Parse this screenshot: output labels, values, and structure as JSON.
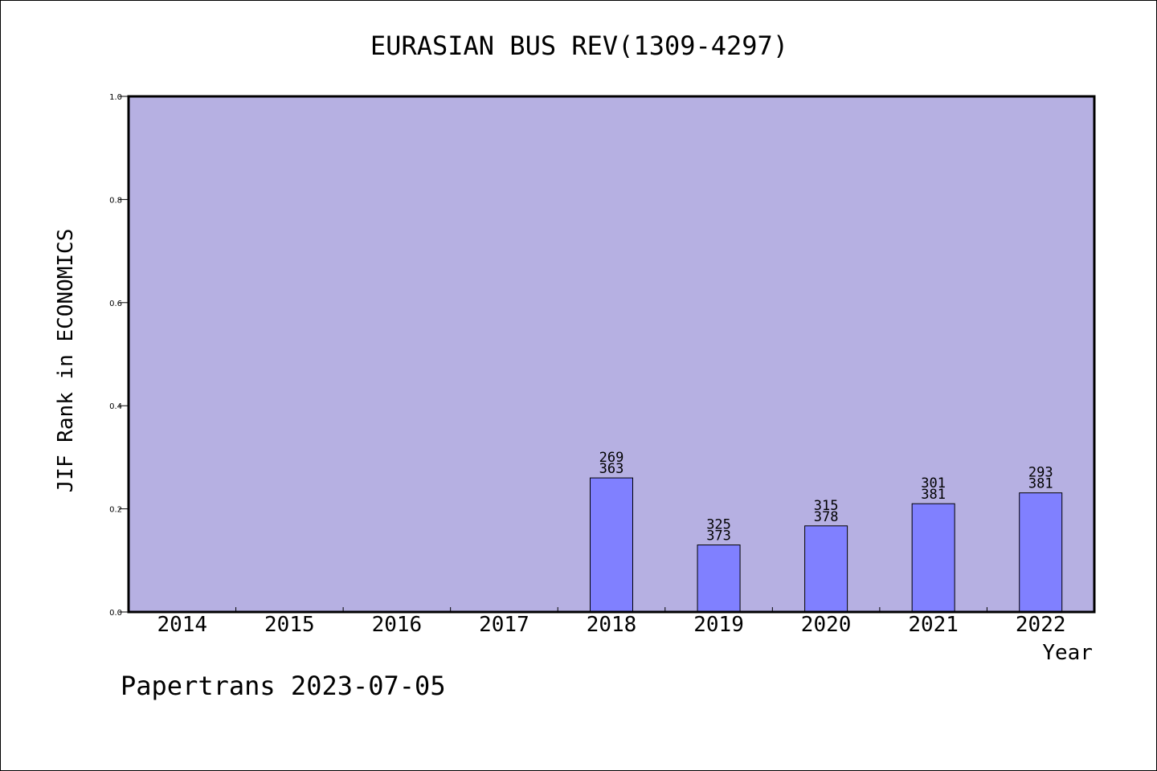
{
  "chart_data": {
    "type": "bar",
    "title": "EURASIAN BUS REV(1309-4297)",
    "xlabel": "Year",
    "ylabel": "JIF Rank in ECONOMICS",
    "footer": "Papertrans 2023-07-05",
    "categories": [
      "2014",
      "2015",
      "2016",
      "2017",
      "2018",
      "2019",
      "2020",
      "2021",
      "2022"
    ],
    "values": [
      null,
      null,
      null,
      null,
      0.26,
      0.13,
      0.167,
      0.21,
      0.231
    ],
    "labels_top": [
      "",
      "",
      "",
      "",
      "269",
      "325",
      "315",
      "301",
      "293"
    ],
    "labels_bottom": [
      "",
      "",
      "",
      "",
      "363",
      "373",
      "378",
      "381",
      "381"
    ],
    "ylim": [
      0,
      1.0
    ],
    "yticks": [
      "0.0",
      "0.2",
      "0.4",
      "0.6",
      "0.8",
      "1.0"
    ],
    "grid": false,
    "colors": {
      "plot_background": "#b6b0e2",
      "bar_fill": "#8080ff",
      "bar_stroke": "#000000",
      "axis": "#000000"
    }
  }
}
